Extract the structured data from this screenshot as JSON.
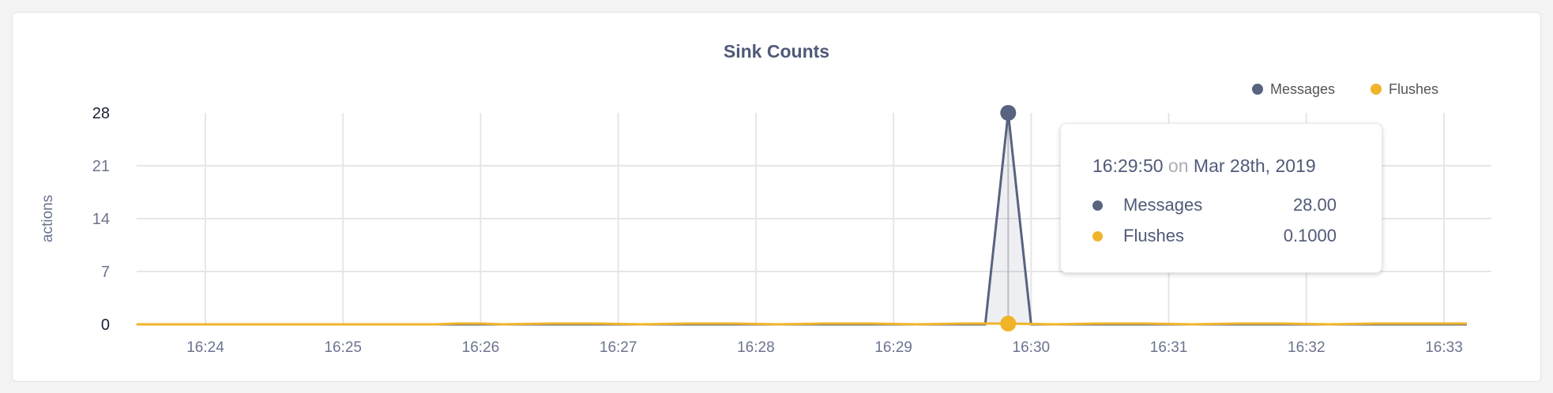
{
  "chart_data": {
    "type": "line",
    "title": "Sink Counts",
    "ylabel": "actions",
    "xlabel": "",
    "ylim": [
      0,
      28
    ],
    "yticks": [
      "0",
      "7",
      "14",
      "21",
      "28"
    ],
    "xticks": [
      "16:24",
      "16:25",
      "16:26",
      "16:27",
      "16:28",
      "16:29",
      "16:30",
      "16:31",
      "16:32",
      "16:33"
    ],
    "grid": true,
    "legend_position": "top-right",
    "series": [
      {
        "name": "Messages",
        "color": "#586380",
        "points": [
          [
            "16:23:30",
            0
          ],
          [
            "16:29:40",
            0
          ],
          [
            "16:29:50",
            28
          ],
          [
            "16:30:00",
            0
          ],
          [
            "16:33:10",
            0
          ]
        ]
      },
      {
        "name": "Flushes",
        "color": "#f0b429",
        "points": [
          [
            "16:23:30",
            0
          ],
          [
            "16:25:40",
            0
          ],
          [
            "16:25:50",
            0.1
          ],
          [
            "16:26:00",
            0.1
          ],
          [
            "16:26:10",
            0
          ],
          [
            "16:26:30",
            0.1
          ],
          [
            "16:26:50",
            0.1
          ],
          [
            "16:27:10",
            0
          ],
          [
            "16:27:30",
            0.1
          ],
          [
            "16:27:50",
            0.1
          ],
          [
            "16:28:10",
            0
          ],
          [
            "16:28:30",
            0.1
          ],
          [
            "16:28:50",
            0.1
          ],
          [
            "16:29:10",
            0
          ],
          [
            "16:29:30",
            0.1
          ],
          [
            "16:29:50",
            0.1
          ],
          [
            "16:30:10",
            0
          ],
          [
            "16:30:30",
            0.1
          ],
          [
            "16:30:50",
            0.1
          ],
          [
            "16:31:10",
            0
          ],
          [
            "16:31:30",
            0.1
          ],
          [
            "16:31:50",
            0.1
          ],
          [
            "16:32:10",
            0
          ],
          [
            "16:32:30",
            0.1
          ],
          [
            "16:32:50",
            0.1
          ],
          [
            "16:33:10",
            0.1
          ]
        ]
      }
    ]
  },
  "tooltip": {
    "time": "16:29:50",
    "on": "on",
    "date": "Mar 28th, 2019",
    "rows": [
      {
        "label": "Messages",
        "value": "28.00",
        "color": "#586380"
      },
      {
        "label": "Flushes",
        "value": "0.1000",
        "color": "#f0b429"
      }
    ]
  }
}
